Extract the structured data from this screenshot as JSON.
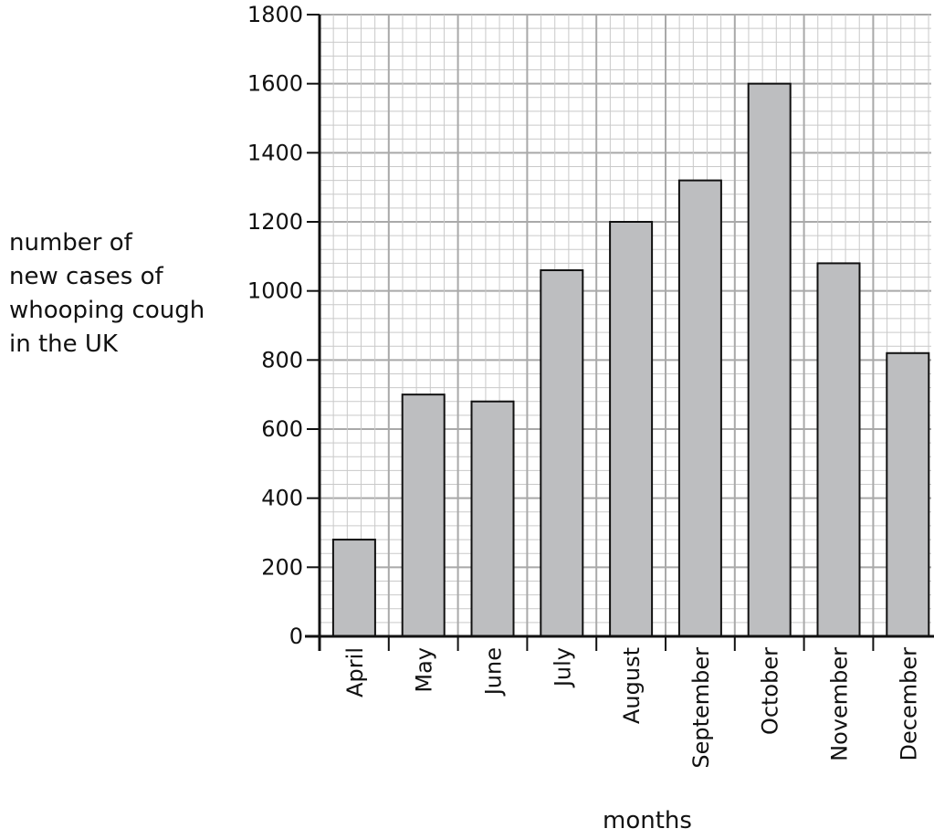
{
  "chart_data": {
    "type": "bar",
    "categories": [
      "April",
      "May",
      "June",
      "July",
      "August",
      "September",
      "October",
      "November",
      "December"
    ],
    "values": [
      280,
      700,
      680,
      1060,
      1200,
      1320,
      1600,
      1080,
      820
    ],
    "ylabel_lines": [
      "number of",
      "new cases of",
      "whooping cough",
      "in the UK"
    ],
    "xlabel": "months",
    "ylim": [
      0,
      1800
    ],
    "yticks": [
      0,
      200,
      400,
      600,
      800,
      1000,
      1200,
      1400,
      1600,
      1800
    ],
    "grid": true,
    "colors": {
      "bar_fill": "#bdbec0",
      "bar_stroke": "#111111",
      "grid_major": "#a9a9a9",
      "grid_minor": "#c9c9c9",
      "axis": "#111111"
    }
  }
}
